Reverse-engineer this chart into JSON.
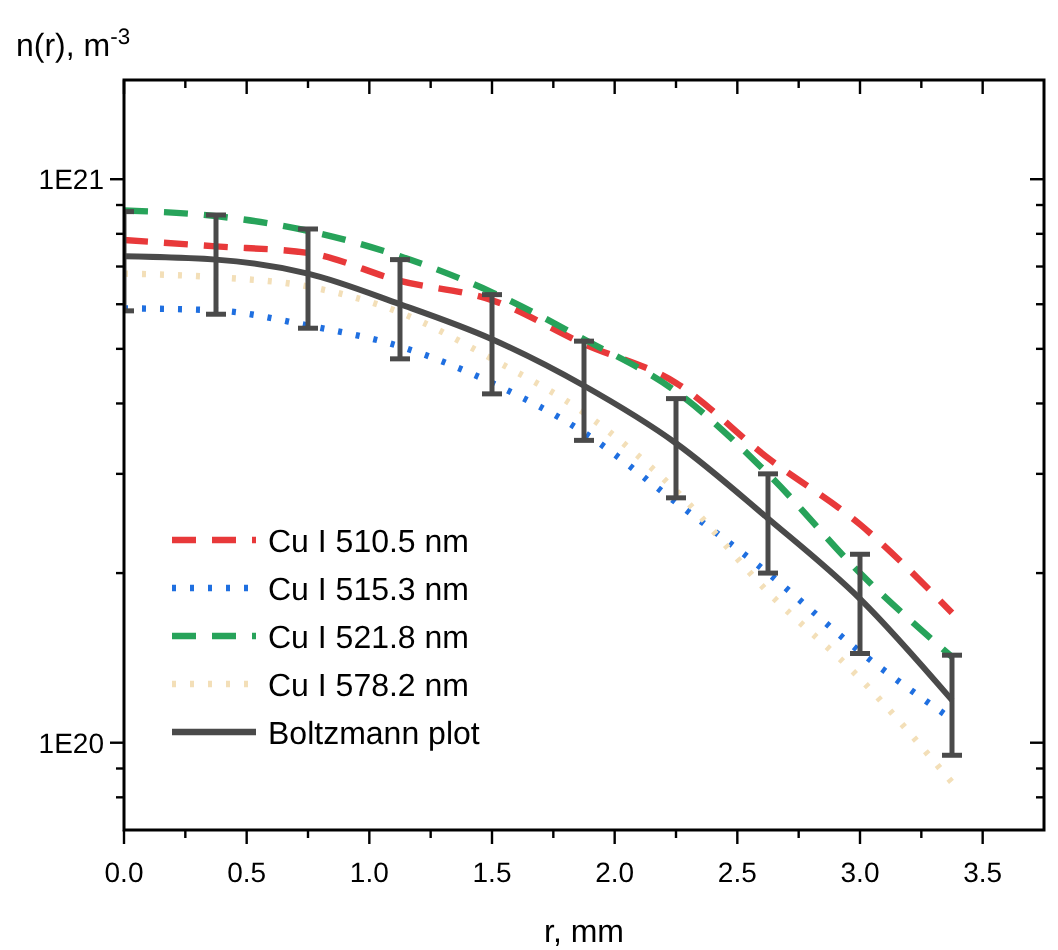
{
  "chart_data": {
    "type": "line",
    "xlabel": "r, mm",
    "ylabel": "n(r), m$^{-3}$",
    "x": [
      0,
      0.375,
      0.75,
      1.125,
      1.5,
      1.875,
      2.25,
      2.625,
      3.0,
      3.375
    ],
    "series": [
      {
        "name": "Cu I 510.5 nm",
        "color": "#e8393a",
        "line_style": "dashed",
        "values": [
          7.8e+20,
          7.6e+20,
          7.4e+20,
          6.6e+20,
          6.1e+20,
          5.1e+20,
          4.35e+20,
          3.2e+20,
          2.44e+20,
          1.7e+20
        ]
      },
      {
        "name": "Cu I 515.3 nm",
        "color": "#1f6fe0",
        "line_style": "dotted",
        "values": [
          5.9e+20,
          5.85e+20,
          5.5e+20,
          5.05e+20,
          4.35e+20,
          3.55e+20,
          2.67e+20,
          2e+20,
          1.45e+20,
          1.1e+20
        ]
      },
      {
        "name": "Cu I 521.8 nm",
        "color": "#27a35a",
        "line_style": "dashed",
        "values": [
          8.8e+20,
          8.6e+20,
          8.1e+20,
          7.3e+20,
          6.3e+20,
          5.2e+20,
          4.2e+20,
          3e+20,
          2e+20,
          1.42e+20
        ]
      },
      {
        "name": "Cu I 578.2 nm",
        "color": "#f3dfb8",
        "line_style": "dotted",
        "values": [
          6.8e+20,
          6.7e+20,
          6.45e+20,
          5.8e+20,
          4.8e+20,
          3.85e+20,
          2.8e+20,
          1.85e+20,
          1.3e+20,
          8.5e+19
        ]
      },
      {
        "name": "Boltzmann plot",
        "color": "#4a4a4a",
        "line_style": "solid",
        "values": [
          7.3e+20,
          7.2e+20,
          6.8e+20,
          6e+20,
          5.2e+20,
          4.3e+20,
          3.4e+20,
          2.5e+20,
          1.8e+20,
          1.19e+20
        ],
        "errors": [
          1.46e+20,
          1.44e+20,
          1.36e+20,
          1.2e+20,
          1.04e+20,
          8.6e+19,
          6.8e+19,
          5e+19,
          3.6e+19,
          2.4e+19
        ]
      }
    ],
    "xlim": [
      0,
      3.75
    ],
    "xticks": [
      {
        "value": 0,
        "label": "0.0"
      },
      {
        "value": 0.25,
        "label": null
      },
      {
        "value": 0.5,
        "label": "0.5"
      },
      {
        "value": 0.75,
        "label": null
      },
      {
        "value": 1,
        "label": "1.0"
      },
      {
        "value": 1.25,
        "label": null
      },
      {
        "value": 1.5,
        "label": "1.5"
      },
      {
        "value": 1.75,
        "label": null
      },
      {
        "value": 2,
        "label": "2.0"
      },
      {
        "value": 2.25,
        "label": null
      },
      {
        "value": 2.5,
        "label": "2.5"
      },
      {
        "value": 2.75,
        "label": null
      },
      {
        "value": 3,
        "label": "3.0"
      },
      {
        "value": 3.25,
        "label": null
      },
      {
        "value": 3.5,
        "label": "3.5"
      }
    ],
    "ylim": [
      7e+19,
      1.5e+21
    ],
    "log": true,
    "yticks": [
      {
        "value": 8e+19,
        "label": null
      },
      {
        "value": 9e+19,
        "label": null
      },
      {
        "value": 1e+20,
        "label": "1E20"
      },
      {
        "value": 2e+20,
        "label": null
      },
      {
        "value": 3e+20,
        "label": null
      },
      {
        "value": 4e+20,
        "label": null
      },
      {
        "value": 5e+20,
        "label": null
      },
      {
        "value": 6e+20,
        "label": null
      },
      {
        "value": 7e+20,
        "label": null
      },
      {
        "value": 8e+20,
        "label": null
      },
      {
        "value": 9e+20,
        "label": null
      },
      {
        "value": 1e+21,
        "label": "1E21"
      }
    ],
    "grid": false,
    "legend": "left",
    "marker": "none"
  }
}
